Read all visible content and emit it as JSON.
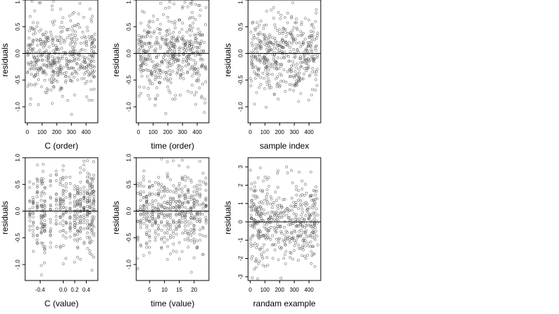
{
  "chart_data": [
    {
      "type": "scatter",
      "xlabel": "C (order)",
      "ylabel": "residuals",
      "xlim": [
        -15,
        480
      ],
      "ylim": [
        -1.3,
        1.0
      ],
      "xticks": [
        0,
        100,
        200,
        300,
        400
      ],
      "yticks": [
        1.0,
        0.5,
        0.0,
        -0.5,
        -1.0
      ],
      "yticklabels": [
        "1.0",
        "0.5",
        "0.0",
        "-0.5",
        "-1.0"
      ],
      "hline": 0,
      "pattern": "uniform",
      "n_points": 460,
      "sd": 0.38,
      "seed": 11
    },
    {
      "type": "scatter",
      "xlabel": "time (order)",
      "ylabel": "residuals",
      "xlim": [
        -15,
        480
      ],
      "ylim": [
        -1.3,
        1.0
      ],
      "xticks": [
        0,
        100,
        200,
        300,
        400
      ],
      "yticks": [
        1.0,
        0.5,
        0.0,
        -0.5,
        -1.0
      ],
      "yticklabels": [
        "1.0",
        "0.5",
        "0.0",
        "-0.5",
        "-1.0"
      ],
      "hline": 0,
      "pattern": "uniform",
      "n_points": 460,
      "sd": 0.38,
      "seed": 23
    },
    {
      "type": "scatter",
      "xlabel": "sample index",
      "ylabel": "residuals",
      "xlim": [
        -15,
        480
      ],
      "ylim": [
        -1.3,
        1.0
      ],
      "xticks": [
        0,
        100,
        200,
        300,
        400
      ],
      "yticks": [
        1.0,
        0.5,
        0.0,
        -0.5,
        -1.0
      ],
      "yticklabels": [
        "1.0",
        "0.5",
        "0.0",
        "-0.5",
        "-1.0"
      ],
      "hline": 0,
      "pattern": "clustered",
      "n_points": 440,
      "sd": 0.36,
      "seed": 37
    },
    {
      "type": "scatter",
      "xlabel": "C (value)",
      "ylabel": "residuals",
      "xlim": [
        -0.66,
        0.6
      ],
      "ylim": [
        -1.3,
        1.0
      ],
      "xticks": [
        -0.4,
        0.0,
        0.2,
        0.4
      ],
      "xticklabels": [
        "-0.4",
        "0.0",
        "0.2",
        "0.4"
      ],
      "yticks": [
        1.0,
        0.5,
        0.0,
        -0.5,
        -1.0
      ],
      "yticklabels": [
        "1.0",
        "0.5",
        "0.0",
        "-0.5",
        "-1.0"
      ],
      "hline": 0,
      "pattern": "columns",
      "columns": [
        -0.58,
        -0.52,
        -0.45,
        -0.38,
        -0.35,
        -0.32,
        -0.22,
        -0.12,
        -0.05,
        0.0,
        0.05,
        0.12,
        0.2,
        0.25,
        0.3,
        0.36,
        0.42,
        0.46,
        0.5,
        0.53
      ],
      "n_points": 460,
      "sd": 0.38,
      "seed": 41
    },
    {
      "type": "scatter",
      "xlabel": "time (value)",
      "ylabel": "residuals",
      "xlim": [
        0.5,
        25
      ],
      "ylim": [
        -1.3,
        1.0
      ],
      "xticks": [
        5,
        10,
        15,
        20
      ],
      "yticks": [
        1.0,
        0.5,
        0.0,
        -0.5,
        -1.0
      ],
      "yticklabels": [
        "1.0",
        "0.5",
        "0.0",
        "-0.5",
        "-1.0"
      ],
      "hline": 0,
      "pattern": "columns",
      "columns": [
        1,
        2,
        3,
        4,
        5,
        6,
        7,
        8,
        9,
        10,
        11,
        12,
        13,
        14,
        15,
        16,
        17,
        18,
        19,
        20,
        21,
        22,
        23,
        24
      ],
      "n_points": 460,
      "sd": 0.38,
      "seed": 53
    },
    {
      "type": "scatter",
      "xlabel": "randam example",
      "ylabel": "residuals",
      "xlim": [
        -15,
        480
      ],
      "ylim": [
        -3.2,
        3.5
      ],
      "xticks": [
        0,
        100,
        200,
        300,
        400
      ],
      "yticks": [
        3,
        2,
        1,
        0,
        -1,
        -2,
        -3
      ],
      "yticklabels": [
        "3",
        "2",
        "1",
        "0",
        "-1",
        "-2",
        "-3"
      ],
      "hline": 0,
      "pattern": "uniform",
      "n_points": 460,
      "sd": 1.05,
      "seed": 67
    }
  ],
  "style": {
    "point_color": "#555555",
    "axis_color": "#000000",
    "line_color": "#000000"
  }
}
